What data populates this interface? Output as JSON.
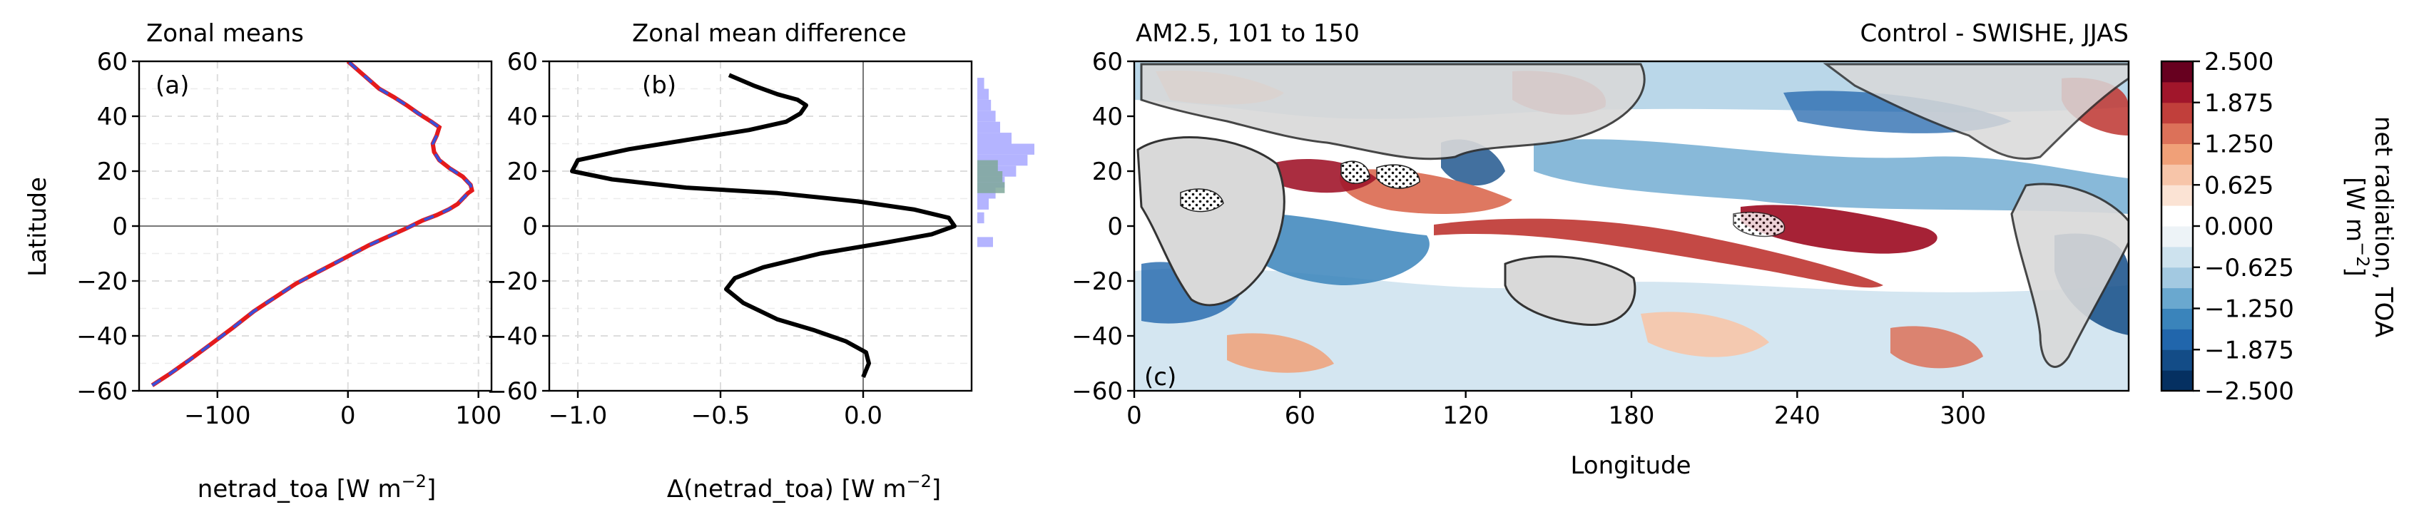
{
  "chart_data": [
    {
      "panel_label": "(a)",
      "type": "line",
      "title": "Zonal means",
      "xlabel": "netrad_toa [W m",
      "xlabel_sup": "−2",
      "xlabel_end": "]",
      "ylabel": "Latitude",
      "xlim": [
        -160,
        110
      ],
      "ylim": [
        -60,
        60
      ],
      "xticks": [
        -100,
        0,
        100
      ],
      "xtick_labels": [
        "−100",
        "0",
        "100"
      ],
      "yticks": [
        -60,
        -40,
        -20,
        0,
        20,
        40,
        60
      ],
      "ytick_labels": [
        "−60",
        "−40",
        "−20",
        "0",
        "20",
        "40",
        "60"
      ],
      "grid": true,
      "colors": [
        "#e41a1c",
        "#3a4fd9"
      ],
      "series": [
        {
          "style": "solid",
          "x": [
            -150,
            -137,
            -122,
            -105,
            -88,
            -72,
            -56,
            -40,
            -24,
            -8,
            4,
            16,
            30,
            44,
            57,
            68,
            77,
            84,
            88,
            92,
            95,
            94,
            88,
            78,
            70,
            66,
            65,
            68,
            70,
            64,
            54,
            45,
            35,
            24,
            12,
            0
          ],
          "y": [
            -58,
            -54,
            -49,
            -43,
            -37,
            -31,
            -26,
            -21,
            -17,
            -13,
            -10,
            -7,
            -4,
            -1,
            2,
            4,
            6,
            8,
            10,
            12,
            13,
            15,
            18,
            21,
            24,
            27,
            30,
            33,
            36,
            38,
            41,
            44,
            47,
            50,
            55,
            60
          ]
        },
        {
          "style": "dashed",
          "x": [
            -150,
            -137,
            -122,
            -105,
            -88,
            -72,
            -56,
            -40,
            -24,
            -8,
            4,
            16,
            30,
            44,
            57,
            68,
            77,
            84,
            88,
            92,
            95,
            94,
            88,
            78,
            70,
            66,
            65,
            68,
            70,
            64,
            54,
            45,
            35,
            24,
            12,
            0
          ],
          "y": [
            -58,
            -54,
            -49,
            -43,
            -37,
            -31,
            -26,
            -21,
            -17,
            -13,
            -10,
            -7,
            -4,
            -1,
            2,
            4,
            6,
            8,
            10,
            12,
            13,
            15,
            18,
            21,
            24,
            27,
            30,
            33,
            36,
            38,
            41,
            44,
            47,
            50,
            55,
            60
          ]
        }
      ]
    },
    {
      "panel_label": "(b)",
      "type": "line",
      "title": "Zonal mean difference",
      "xlabel": "Δ(netrad_toa) [W m",
      "xlabel_sup": "−2",
      "xlabel_end": "]",
      "xlim": [
        -1.1,
        0.38
      ],
      "ylim": [
        -60,
        60
      ],
      "xticks": [
        -1.0,
        -0.5,
        0.0
      ],
      "xtick_labels": [
        "−1.0",
        "−0.5",
        "0.0"
      ],
      "yticks": [
        -60,
        -40,
        -20,
        0,
        20,
        40,
        60
      ],
      "ytick_labels": [
        "−60",
        "−40",
        "−20",
        "0",
        "20",
        "40",
        "60"
      ],
      "grid": true,
      "colors": [
        "#000000",
        "#b4b4ff",
        "#7fa89a"
      ],
      "series": [
        {
          "x": [
            0.0,
            0.02,
            0.01,
            -0.06,
            -0.17,
            -0.3,
            -0.42,
            -0.48,
            -0.45,
            -0.35,
            -0.15,
            0.08,
            0.24,
            0.32,
            0.3,
            0.18,
            -0.02,
            -0.3,
            -0.62,
            -0.88,
            -1.02,
            -1.0,
            -0.82,
            -0.58,
            -0.4,
            -0.27,
            -0.22,
            -0.2,
            -0.23,
            -0.3,
            -0.38,
            -0.47
          ],
          "y": [
            -55,
            -50,
            -46,
            -42,
            -38,
            -34,
            -28,
            -23,
            -19,
            -15,
            -10,
            -6,
            -3,
            0,
            3,
            6,
            9,
            12,
            14,
            17,
            20,
            24,
            28,
            32,
            35,
            38,
            41,
            44,
            46,
            48,
            51,
            55
          ]
        }
      ],
      "histogram_side": "right"
    },
    {
      "panel_label": "(c)",
      "type": "heatmap",
      "title_left": "AM2.5, 101 to 150",
      "title_right": "Control - SWISHE, JJAS",
      "xlabel": "Longitude",
      "xlim": [
        0,
        360
      ],
      "ylim": [
        -60,
        60
      ],
      "xticks": [
        0,
        60,
        120,
        180,
        240,
        300
      ],
      "xtick_labels": [
        "0",
        "60",
        "120",
        "180",
        "240",
        "300"
      ],
      "yticks": [
        -60,
        -40,
        -20,
        0,
        20,
        40,
        60
      ],
      "ytick_labels": [
        "−60",
        "−40",
        "−20",
        "0",
        "20",
        "40",
        "60"
      ],
      "colorbar": {
        "label": "net radiation, TOA [W m−2]",
        "label_line1": "net radiation, TOA",
        "label_line2": "[W m",
        "label_sup": "−2",
        "label_end": "]",
        "levels": [
          -2.5,
          -1.875,
          -1.25,
          -0.625,
          0.0,
          0.625,
          1.25,
          1.875,
          2.5
        ],
        "tick_labels": [
          "−2.500",
          "−1.875",
          "−1.250",
          "−0.625",
          "0.000",
          "0.625",
          "1.250",
          "1.875",
          "2.500"
        ],
        "colors": [
          "#053061",
          "#134c87",
          "#2166ac",
          "#3a84bb",
          "#6aa8cf",
          "#a3c9e1",
          "#cde2ee",
          "#edf3f7",
          "#ffffff",
          "#fbe3d4",
          "#f7c5a9",
          "#f0a078",
          "#dc7159",
          "#c13f3b",
          "#a1162b",
          "#67001f"
        ]
      }
    }
  ]
}
